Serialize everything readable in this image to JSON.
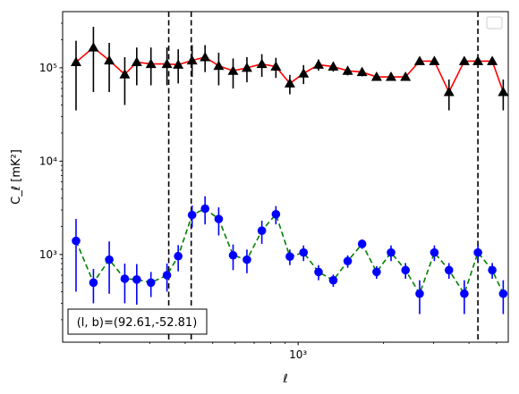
{
  "chart_data": {
    "type": "scatter",
    "title": "",
    "xlabel": "ℓ",
    "ylabel": "C_ℓ  [mK²]",
    "xscale": "log",
    "yscale": "log",
    "xlim": [
      148,
      5500
    ],
    "ylim": [
      115,
      400000
    ],
    "grid": false,
    "legend": {
      "placement": "top-right",
      "entries": []
    },
    "xticks": [
      {
        "value": 1000,
        "label": "10³"
      }
    ],
    "yticks": [
      {
        "value": 1000,
        "label": "10³"
      },
      {
        "value": 10000,
        "label": "10⁴"
      },
      {
        "value": 100000,
        "label": "10⁵"
      }
    ],
    "vlines": [
      350,
      420,
      4300
    ],
    "annotation": "(l, b)=(92.61,-52.81)",
    "series": [
      {
        "marker": "triangle",
        "marker_color": "#000000",
        "line_color": "#ff0000",
        "line_style": "solid",
        "x": [
          165,
          190,
          216,
          245,
          270,
          303,
          345,
          378,
          423,
          470,
          525,
          590,
          660,
          745,
          835,
          935,
          1045,
          1180,
          1330,
          1495,
          1680,
          1890,
          2125,
          2390,
          2680,
          3020,
          3400,
          3850,
          4300,
          4830,
          5280
        ],
        "y": [
          115000,
          165000,
          120000,
          85000,
          115000,
          110000,
          110000,
          108000,
          120000,
          130000,
          105000,
          93000,
          100000,
          110000,
          103000,
          68000,
          87000,
          108000,
          103000,
          93000,
          90000,
          80000,
          80000,
          80000,
          118000,
          118000,
          55000,
          118000,
          118000,
          118000,
          55000
        ],
        "yerr_low": [
          80000,
          110000,
          65000,
          45000,
          50000,
          45000,
          45000,
          40000,
          40000,
          40000,
          40000,
          33000,
          30000,
          30000,
          25000,
          16000,
          20000,
          15000,
          12000,
          10000,
          9000,
          7000,
          6000,
          5000,
          5000,
          5000,
          20000,
          5000,
          5000,
          5000,
          20000
        ],
        "yerr_high": [
          80000,
          110000,
          65000,
          45000,
          50000,
          55000,
          55000,
          50000,
          55000,
          45000,
          40000,
          33000,
          30000,
          30000,
          25000,
          16000,
          20000,
          15000,
          12000,
          10000,
          9000,
          7000,
          6000,
          5000,
          5000,
          5000,
          20000,
          5000,
          5000,
          5000,
          20000
        ]
      },
      {
        "marker": "circle",
        "marker_color": "#0000ff",
        "line_color": "#008000",
        "line_style": "dashed",
        "x": [
          165,
          190,
          216,
          245,
          270,
          303,
          345,
          378,
          423,
          470,
          525,
          590,
          660,
          745,
          835,
          935,
          1045,
          1180,
          1330,
          1495,
          1680,
          1890,
          2125,
          2390,
          2680,
          3020,
          3400,
          3850,
          4300,
          4830,
          5280
        ],
        "y": [
          1400,
          500,
          880,
          550,
          540,
          500,
          600,
          960,
          2650,
          3100,
          2400,
          980,
          880,
          1800,
          2700,
          950,
          1050,
          650,
          530,
          850,
          1300,
          650,
          1050,
          680,
          380,
          1050,
          680,
          380,
          1050,
          680,
          380
        ],
        "yerr_low": [
          1000,
          200,
          500,
          250,
          250,
          150,
          200,
          300,
          700,
          1000,
          800,
          300,
          250,
          500,
          600,
          180,
          200,
          120,
          80,
          130,
          150,
          100,
          200,
          130,
          150,
          200,
          130,
          150,
          200,
          130,
          150
        ],
        "yerr_high": [
          1000,
          200,
          500,
          250,
          250,
          150,
          200,
          300,
          700,
          1100,
          800,
          300,
          250,
          500,
          600,
          180,
          200,
          120,
          80,
          130,
          150,
          100,
          200,
          130,
          150,
          200,
          130,
          150,
          200,
          130,
          150
        ]
      }
    ]
  }
}
